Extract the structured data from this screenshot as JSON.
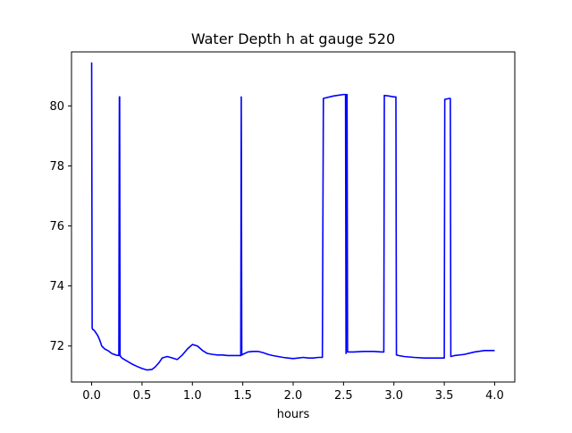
{
  "chart_data": {
    "type": "line",
    "title": "Water Depth h at gauge 520",
    "xlabel": "hours",
    "ylabel": "",
    "xlim": [
      -0.2,
      4.2
    ],
    "ylim": [
      70.8,
      81.8
    ],
    "xticks": [
      0.0,
      0.5,
      1.0,
      1.5,
      2.0,
      2.5,
      3.0,
      3.5,
      4.0
    ],
    "xtick_labels": [
      "0.0",
      "0.5",
      "1.0",
      "1.5",
      "2.0",
      "2.5",
      "3.0",
      "3.5",
      "4.0"
    ],
    "yticks": [
      72,
      74,
      76,
      78,
      80
    ],
    "ytick_labels": [
      "72",
      "74",
      "76",
      "78",
      "80"
    ],
    "grid": false,
    "series": [
      {
        "color": "#0000ff",
        "x": [
          0.0,
          0.005,
          0.01,
          0.015,
          0.03,
          0.06,
          0.08,
          0.1,
          0.13,
          0.16,
          0.2,
          0.24,
          0.27,
          0.275,
          0.278,
          0.282,
          0.287,
          0.3,
          0.35,
          0.4,
          0.45,
          0.5,
          0.55,
          0.6,
          0.63,
          0.67,
          0.7,
          0.75,
          0.8,
          0.85,
          0.9,
          0.95,
          1.0,
          1.05,
          1.1,
          1.15,
          1.2,
          1.25,
          1.3,
          1.35,
          1.4,
          1.46,
          1.48,
          1.485,
          1.49,
          1.5,
          1.55,
          1.6,
          1.65,
          1.7,
          1.75,
          1.8,
          1.85,
          1.9,
          1.95,
          2.0,
          2.05,
          2.1,
          2.15,
          2.2,
          2.25,
          2.28,
          2.29,
          2.3,
          2.4,
          2.5,
          2.52,
          2.525,
          2.53,
          2.535,
          2.54,
          2.545,
          2.55,
          2.6,
          2.7,
          2.8,
          2.88,
          2.9,
          2.905,
          2.95,
          3.0,
          3.02,
          3.025,
          3.03,
          3.05,
          3.1,
          3.2,
          3.3,
          3.4,
          3.5,
          3.505,
          3.51,
          3.55,
          3.56,
          3.565,
          3.6,
          3.7,
          3.8,
          3.9,
          4.0
        ],
        "y": [
          81.45,
          72.6,
          72.55,
          72.55,
          72.5,
          72.35,
          72.2,
          72.0,
          71.9,
          71.85,
          71.75,
          71.7,
          71.68,
          80.3,
          80.3,
          71.7,
          71.65,
          71.6,
          71.5,
          71.4,
          71.32,
          71.25,
          71.2,
          71.22,
          71.3,
          71.45,
          71.6,
          71.65,
          71.6,
          71.55,
          71.7,
          71.9,
          72.05,
          72.0,
          71.85,
          71.75,
          71.72,
          71.7,
          71.7,
          71.68,
          71.68,
          71.68,
          71.68,
          80.3,
          71.7,
          71.72,
          71.8,
          71.82,
          71.82,
          71.78,
          71.72,
          71.68,
          71.65,
          71.62,
          71.6,
          71.58,
          71.6,
          71.62,
          71.6,
          71.6,
          71.62,
          71.62,
          71.62,
          80.25,
          80.33,
          80.38,
          80.38,
          71.75,
          80.38,
          80.38,
          71.8,
          71.8,
          71.8,
          71.8,
          71.82,
          71.82,
          71.8,
          71.8,
          80.35,
          80.33,
          80.3,
          80.3,
          71.7,
          71.7,
          71.68,
          71.65,
          71.62,
          71.6,
          71.6,
          71.6,
          80.22,
          80.22,
          80.25,
          80.25,
          71.65,
          71.68,
          71.72,
          71.8,
          71.85,
          71.85
        ]
      }
    ]
  }
}
